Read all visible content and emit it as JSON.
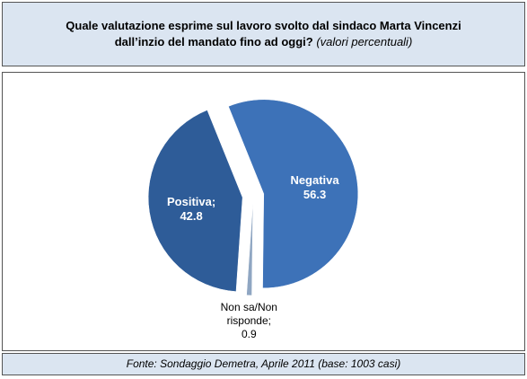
{
  "chart_data": {
    "type": "pie",
    "title": "Quale valutazione esprime sul lavoro svolto dal sindaco Marta Vincenzi dall’inzio del mandato fino ad oggi?",
    "subtitle": "(valori percentuali)",
    "source": "Fonte: Sondaggio Demetra, Aprile 2011 (base: 1003 casi)",
    "categories": [
      "Negativa",
      "Non sa/Non risponde;",
      "Positiva;"
    ],
    "values": [
      56.3,
      0.9,
      42.8
    ],
    "colors": [
      "#3d72b8",
      "#8fa6c2",
      "#2e5c98"
    ]
  }
}
